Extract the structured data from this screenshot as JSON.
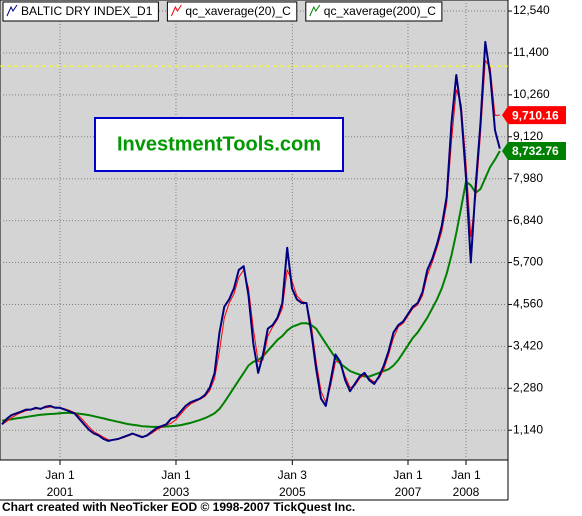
{
  "chart_data": {
    "type": "line",
    "title": null,
    "watermark": "InvestmentTools.com",
    "footer": "Chart created with NeoTicker EOD © 1998-2007 TickQuest Inc.",
    "x": [
      "2000-01",
      "2000-02",
      "2000-03",
      "2000-04",
      "2000-05",
      "2000-06",
      "2000-07",
      "2000-08",
      "2000-09",
      "2000-10",
      "2000-11",
      "2000-12",
      "2001-01",
      "2001-02",
      "2001-03",
      "2001-04",
      "2001-05",
      "2001-06",
      "2001-07",
      "2001-08",
      "2001-09",
      "2001-10",
      "2001-11",
      "2001-12",
      "2002-01",
      "2002-02",
      "2002-03",
      "2002-04",
      "2002-05",
      "2002-06",
      "2002-07",
      "2002-08",
      "2002-09",
      "2002-10",
      "2002-11",
      "2002-12",
      "2003-01",
      "2003-02",
      "2003-03",
      "2003-04",
      "2003-05",
      "2003-06",
      "2003-07",
      "2003-08",
      "2003-09",
      "2003-10",
      "2003-11",
      "2003-12",
      "2004-01",
      "2004-02",
      "2004-03",
      "2004-04",
      "2004-05",
      "2004-06",
      "2004-07",
      "2004-08",
      "2004-09",
      "2004-10",
      "2004-11",
      "2004-12",
      "2005-01",
      "2005-02",
      "2005-03",
      "2005-04",
      "2005-05",
      "2005-06",
      "2005-07",
      "2005-08",
      "2005-09",
      "2005-10",
      "2005-11",
      "2005-12",
      "2006-01",
      "2006-02",
      "2006-03",
      "2006-04",
      "2006-05",
      "2006-06",
      "2006-07",
      "2006-08",
      "2006-09",
      "2006-10",
      "2006-11",
      "2006-12",
      "2007-01",
      "2007-02",
      "2007-03",
      "2007-04",
      "2007-05",
      "2007-06",
      "2007-07",
      "2007-08",
      "2007-09",
      "2007-10",
      "2007-11",
      "2007-12",
      "2008-01",
      "2008-02",
      "2008-03",
      "2008-04",
      "2008-05",
      "2008-06",
      "2008-07",
      "2008-08"
    ],
    "series": [
      {
        "name": "BALTIC DRY INDEX_D1",
        "color": "#000080",
        "width": 2,
        "values": [
          1300,
          1450,
          1550,
          1600,
          1650,
          1700,
          1700,
          1750,
          1720,
          1780,
          1800,
          1750,
          1750,
          1700,
          1650,
          1600,
          1450,
          1300,
          1150,
          1050,
          1000,
          900,
          850,
          880,
          900,
          950,
          1000,
          1050,
          1000,
          950,
          1000,
          1100,
          1200,
          1250,
          1300,
          1450,
          1500,
          1650,
          1800,
          1900,
          1950,
          2000,
          2100,
          2300,
          2700,
          3800,
          4500,
          4700,
          5000,
          5500,
          5600,
          4800,
          3500,
          2700,
          3200,
          3900,
          4000,
          4200,
          4600,
          6100,
          5000,
          4700,
          4600,
          4600,
          3800,
          2800,
          2000,
          1800,
          2500,
          3200,
          3000,
          2500,
          2200,
          2400,
          2600,
          2700,
          2500,
          2400,
          2600,
          2900,
          3300,
          3800,
          4000,
          4100,
          4300,
          4500,
          4600,
          4900,
          5500,
          5800,
          6200,
          6700,
          7500,
          9500,
          10800,
          9800,
          8000,
          5700,
          7800,
          9500,
          11700,
          10800,
          9300,
          8800
        ]
      },
      {
        "name": "qc_xaverage(20)_C",
        "color": "#ff0000",
        "width": 1,
        "values": [
          1300,
          1380,
          1480,
          1560,
          1620,
          1670,
          1700,
          1720,
          1730,
          1750,
          1770,
          1770,
          1750,
          1720,
          1680,
          1620,
          1520,
          1380,
          1230,
          1100,
          1030,
          950,
          880,
          870,
          890,
          930,
          980,
          1030,
          1020,
          970,
          980,
          1060,
          1150,
          1220,
          1280,
          1330,
          1430,
          1580,
          1730,
          1850,
          1920,
          1980,
          2060,
          2220,
          2550,
          3300,
          4200,
          4600,
          4850,
          5300,
          5500,
          5000,
          3900,
          3000,
          3050,
          3700,
          3950,
          4150,
          4450,
          5500,
          5200,
          4800,
          4650,
          4600,
          4000,
          3000,
          2200,
          1900,
          2350,
          3000,
          3000,
          2600,
          2300,
          2350,
          2550,
          2650,
          2550,
          2450,
          2550,
          2800,
          3200,
          3650,
          3950,
          4050,
          4250,
          4450,
          4550,
          4800,
          5350,
          5700,
          6100,
          6550,
          7300,
          9000,
          10400,
          10000,
          8400,
          6400,
          7500,
          9200,
          11200,
          11000,
          9700,
          9710.16
        ]
      },
      {
        "name": "qc_xaverage(200)_C",
        "color": "#008000",
        "width": 2,
        "values": [
          1400,
          1420,
          1440,
          1460,
          1480,
          1500,
          1520,
          1540,
          1560,
          1570,
          1580,
          1590,
          1600,
          1610,
          1610,
          1600,
          1590,
          1570,
          1550,
          1520,
          1490,
          1460,
          1430,
          1400,
          1370,
          1340,
          1310,
          1290,
          1270,
          1250,
          1240,
          1230,
          1230,
          1230,
          1240,
          1250,
          1260,
          1280,
          1310,
          1340,
          1380,
          1420,
          1470,
          1530,
          1600,
          1720,
          1900,
          2100,
          2300,
          2500,
          2700,
          2900,
          3000,
          3050,
          3150,
          3300,
          3450,
          3600,
          3700,
          3850,
          3950,
          4000,
          4050,
          4050,
          4000,
          3900,
          3700,
          3500,
          3300,
          3100,
          2950,
          2850,
          2750,
          2700,
          2650,
          2600,
          2600,
          2650,
          2700,
          2750,
          2800,
          2900,
          3050,
          3250,
          3450,
          3650,
          3800,
          4000,
          4200,
          4450,
          4700,
          5000,
          5400,
          5900,
          6500,
          7200,
          7900,
          7800,
          7600,
          7700,
          8000,
          8300,
          8500,
          8732.76
        ]
      }
    ],
    "annotations": [
      {
        "value": 9710.16,
        "label": "9,710.16",
        "color": "#ff0000"
      },
      {
        "value": 8732.76,
        "label": "8,732.76",
        "color": "#008000"
      }
    ],
    "hline": {
      "value": 11040,
      "color": "#ffff00"
    },
    "xlim": [
      "1999-12-19",
      "2008-09-22"
    ],
    "xticks": [
      {
        "value": "2001-01-01",
        "label": "Jan 1",
        "year": "2001"
      },
      {
        "value": "2003-01-01",
        "label": "Jan 1",
        "year": "2003"
      },
      {
        "value": "2005-01-03",
        "label": "Jan 3",
        "year": "2005"
      },
      {
        "value": "2007-01-01",
        "label": "Jan 1",
        "year": "2007"
      },
      {
        "value": "2008-01-01",
        "label": "Jan 1",
        "year": "2008"
      }
    ],
    "ylim": [
      330,
      12840
    ],
    "yticks": [
      {
        "value": 1140,
        "label": "1,140"
      },
      {
        "value": 2280,
        "label": "2,280"
      },
      {
        "value": 3420,
        "label": "3,420"
      },
      {
        "value": 4560,
        "label": "4,560"
      },
      {
        "value": 5700,
        "label": "5,700"
      },
      {
        "value": 6840,
        "label": "6,840"
      },
      {
        "value": 7980,
        "label": "7,980"
      },
      {
        "value": 9120,
        "label": "9,120"
      },
      {
        "value": 10260,
        "label": "10,260"
      },
      {
        "value": 11400,
        "label": "11,400"
      },
      {
        "value": 12540,
        "label": "12,540"
      }
    ],
    "grid": true
  }
}
